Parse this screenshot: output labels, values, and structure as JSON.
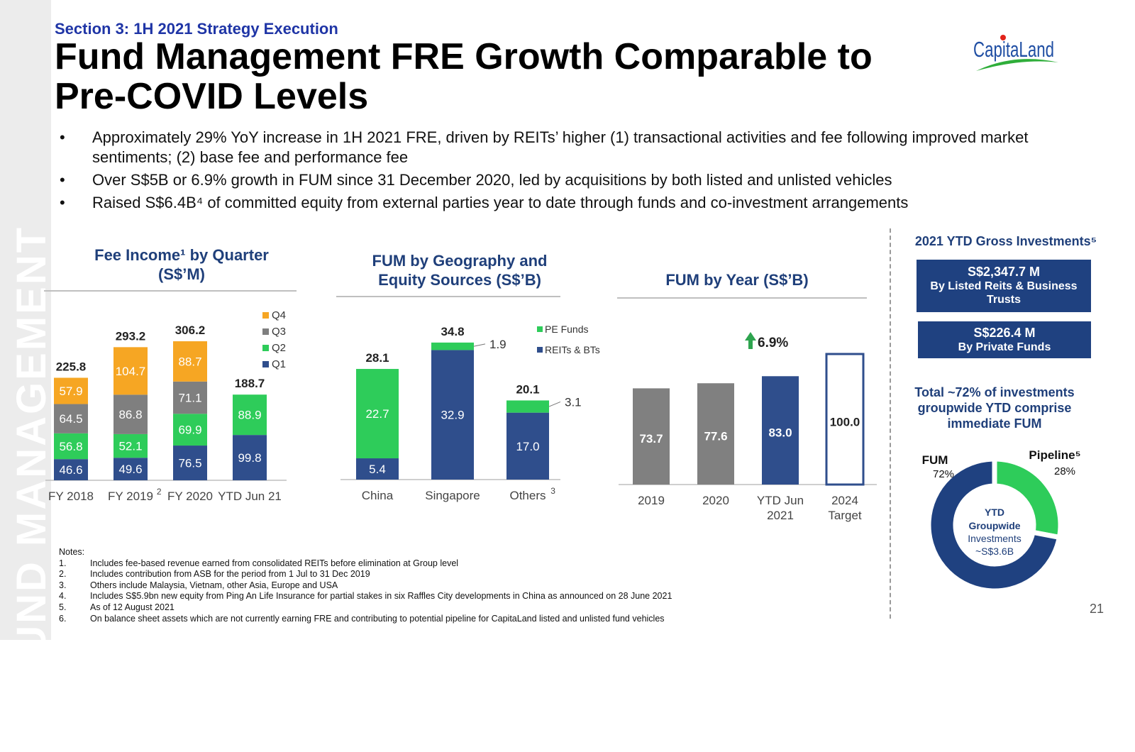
{
  "sidebar": {
    "label": "FUND MANAGEMENT"
  },
  "header": {
    "section": "Section 3: 1H 2021 Strategy Execution",
    "title": "Fund Management FRE Growth Comparable to Pre-COVID Levels"
  },
  "logo": {
    "text": "CapitaLand",
    "color": "#1f4ea3",
    "accent": "#2fae3a"
  },
  "bullets": [
    "Approximately 29% YoY increase in 1H 2021 FRE, driven by REITs’ higher (1) transactional activities and fee following improved market sentiments; (2) base fee and performance fee",
    "Over S$5B or 6.9% growth in FUM since 31 December 2020, led by acquisitions by both listed and unlisted vehicles",
    "Raised S$6.4B⁴ of committed equity from external parties year to date through funds and co-investment arrangements"
  ],
  "colors": {
    "navy": "#2f4e8c",
    "green": "#2ecc5a",
    "gray": "#7f7f7f",
    "orange": "#f6a623",
    "title": "#1f3f7a"
  },
  "chart_data": [
    {
      "type": "bar",
      "stacked": true,
      "title": "Fee Income¹ by Quarter (S$’M)",
      "categories": [
        "FY 2018",
        "FY 2019",
        "FY 2020",
        "YTD Jun 21"
      ],
      "category_superscripts": [
        "",
        "2",
        "",
        ""
      ],
      "series": [
        {
          "name": "Q1",
          "color": "#2f4e8c",
          "values": [
            46.6,
            49.6,
            76.5,
            99.8
          ]
        },
        {
          "name": "Q2",
          "color": "#2ecc5a",
          "values": [
            56.8,
            52.1,
            69.9,
            88.9
          ]
        },
        {
          "name": "Q3",
          "color": "#7f7f7f",
          "values": [
            64.5,
            86.8,
            71.1,
            null
          ]
        },
        {
          "name": "Q4",
          "color": "#f6a623",
          "values": [
            57.9,
            104.7,
            88.7,
            null
          ]
        }
      ],
      "totals": [
        225.8,
        293.2,
        306.2,
        188.7
      ],
      "legend": "top-right",
      "ylim": [
        0,
        320
      ]
    },
    {
      "type": "bar",
      "stacked": true,
      "title": "FUM by Geography and Equity Sources (S$’B)",
      "categories": [
        "China",
        "Singapore",
        "Others"
      ],
      "category_superscripts": [
        "",
        "",
        "3"
      ],
      "series": [
        {
          "name": "REITs & BTs",
          "color": "#2f4e8c",
          "values": [
            5.4,
            32.9,
            17.0
          ]
        },
        {
          "name": "PE Funds",
          "color": "#2ecc5a",
          "values": [
            22.7,
            1.9,
            3.1
          ]
        }
      ],
      "totals": [
        28.1,
        34.8,
        20.1
      ],
      "legend": "top-right",
      "ylim": [
        0,
        36
      ]
    },
    {
      "type": "bar",
      "title": "FUM by Year (S$’B)",
      "categories": [
        "2019",
        "2020",
        "YTD Jun\n2021",
        "2024\nTarget"
      ],
      "values": [
        73.7,
        77.6,
        83.0,
        100.0
      ],
      "annotation": "6.9%",
      "ylim": [
        0,
        110
      ]
    },
    {
      "type": "pie",
      "title": "2021 YTD Gross Investments⁵",
      "center_label": [
        "YTD",
        "Groupwide",
        "Investments",
        "~S$3.6B"
      ],
      "slices": [
        {
          "name": "FUM",
          "value": 72,
          "label": "72%",
          "color": "#1f4180"
        },
        {
          "name": "Pipeline⁵",
          "value": 28,
          "label": "28%",
          "color": "#2ecc5a"
        }
      ]
    }
  ],
  "investments": {
    "box1_amount": "S$2,347.7 M",
    "box1_label": "By Listed Reits & Business Trusts",
    "box2_amount": "S$226.4 M",
    "box2_label": "By Private Funds",
    "summary": "Total ~72% of investments groupwide YTD comprise immediate FUM"
  },
  "notes": {
    "heading": "Notes:",
    "items": [
      {
        "num": "1.",
        "text": "Includes fee-based revenue earned from consolidated REITs before elimination at Group level"
      },
      {
        "num": "2.",
        "text": "Includes contribution from ASB for the period from 1 Jul to 31 Dec 2019"
      },
      {
        "num": "3.",
        "text": "Others include Malaysia, Vietnam, other Asia, Europe and USA"
      },
      {
        "num": "4.",
        "text": "Includes S$5.9bn new equity from Ping An Life Insurance for partial stakes in six Raffles City developments in China as announced on 28 June 2021"
      },
      {
        "num": "5.",
        "text": "As of 12 August 2021"
      },
      {
        "num": "6.",
        "text": "On balance sheet assets which are not currently earning FRE and contributing to potential pipeline for CapitaLand listed and unlisted fund vehicles"
      }
    ]
  },
  "page_number": "21"
}
